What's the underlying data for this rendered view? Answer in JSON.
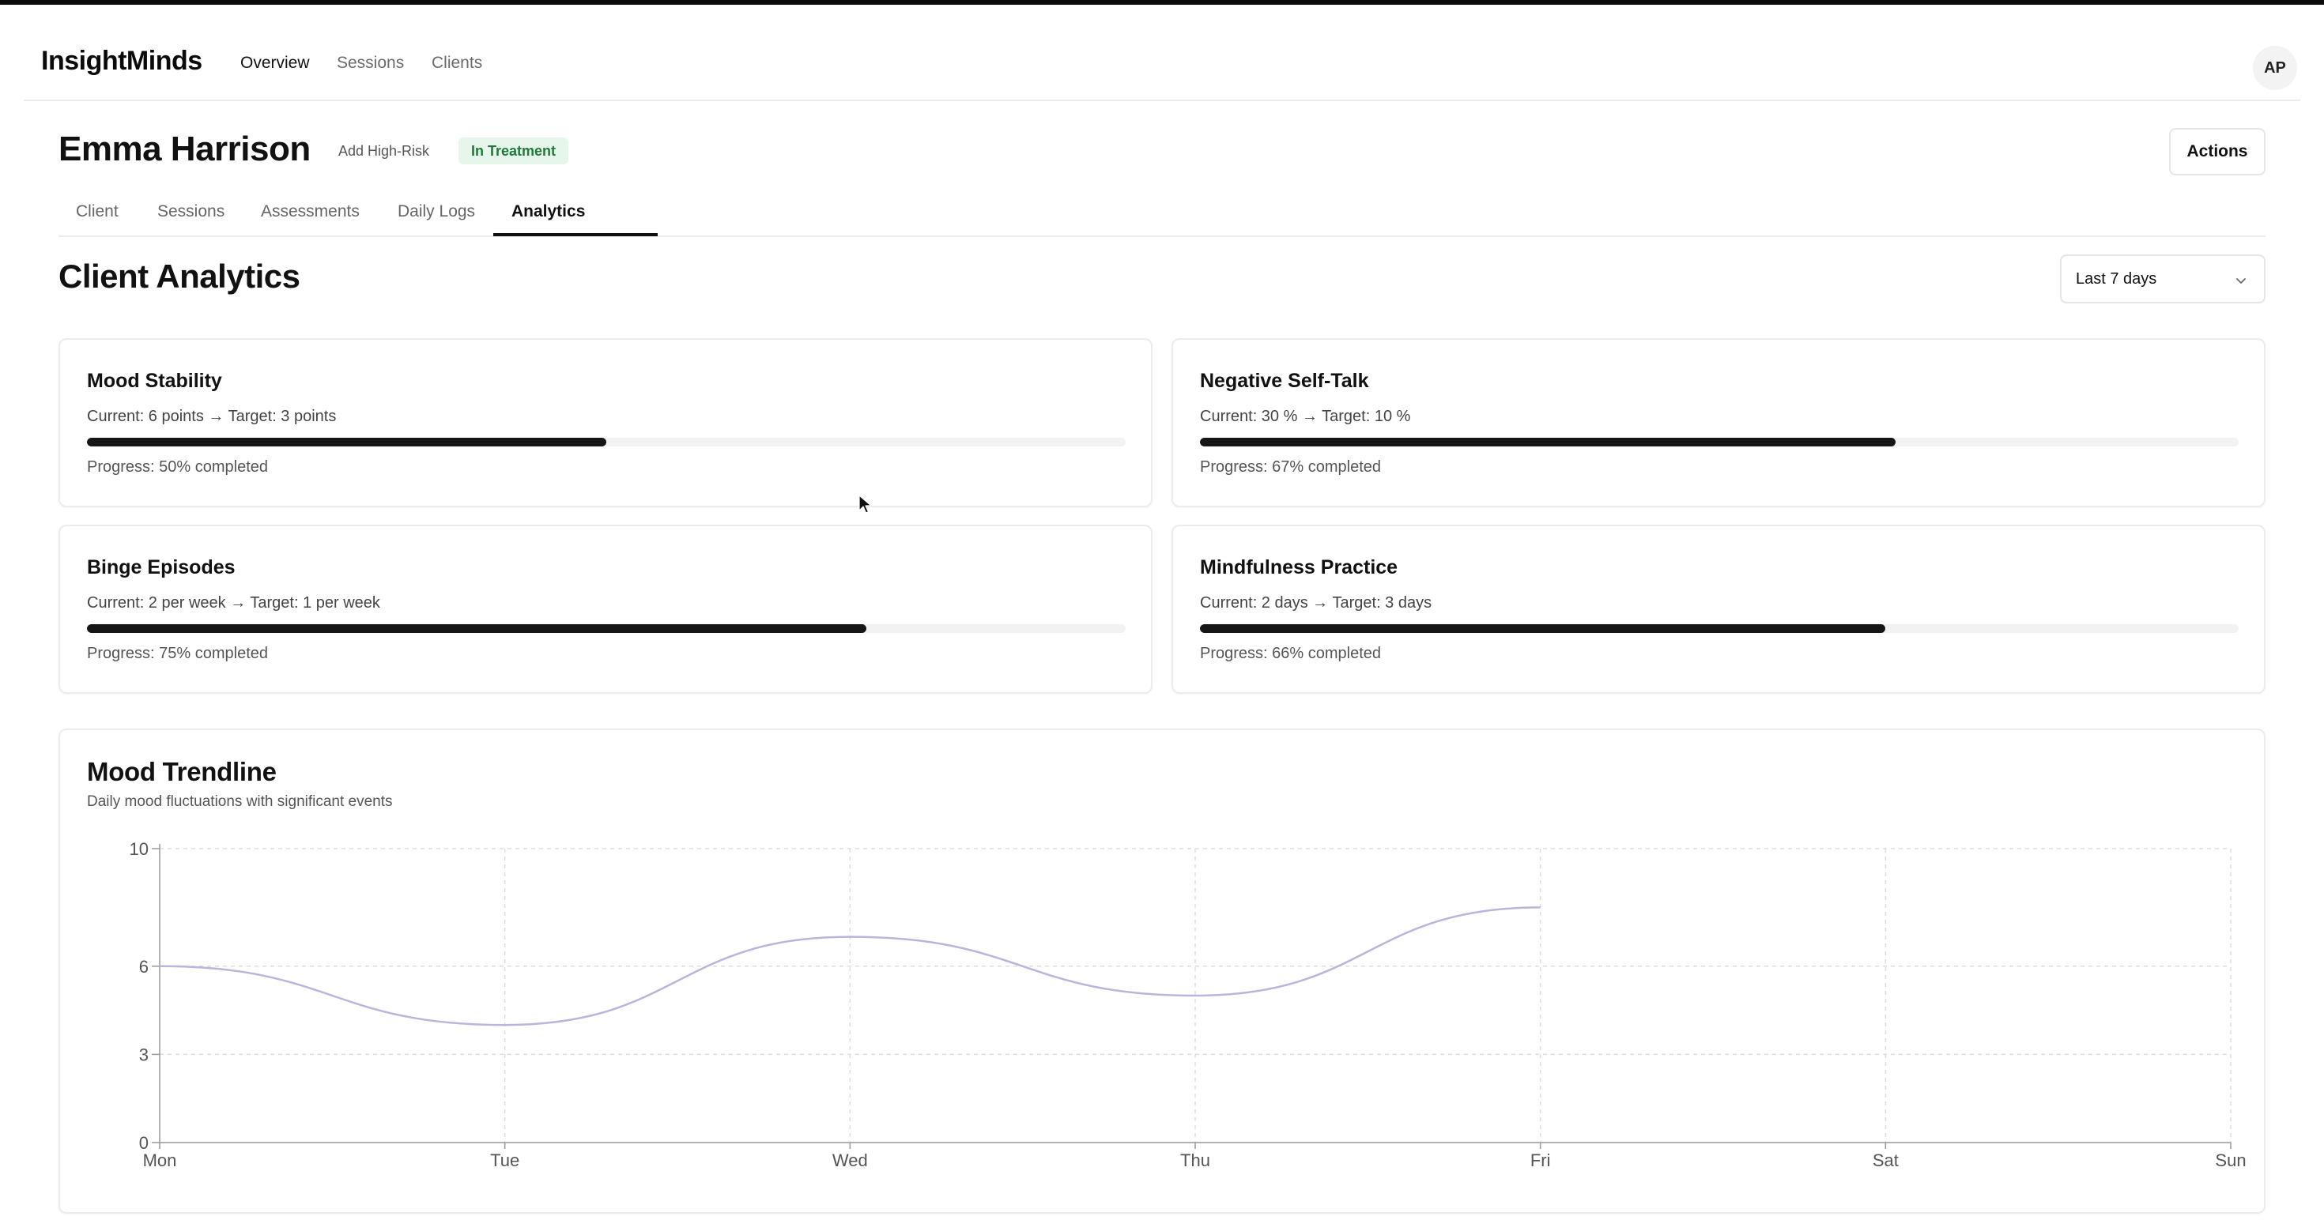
{
  "app": {
    "name": "InsightMinds",
    "nav": [
      "Overview",
      "Sessions",
      "Clients"
    ],
    "active_nav": "Overview",
    "user_initials": "AP"
  },
  "client": {
    "name": "Emma Harrison",
    "risk_action": "Add High-Risk",
    "status": "In Treatment",
    "actions_label": "Actions"
  },
  "tabs": [
    "Client",
    "Sessions",
    "Assessments",
    "Daily Logs",
    "Analytics"
  ],
  "active_tab": "Analytics",
  "analytics": {
    "title": "Client Analytics",
    "range": "Last 7 days"
  },
  "goals": [
    {
      "title": "Mood Stability",
      "current": "Current: 6 points → Target: 3 points",
      "progress_label": "Progress: 50% completed",
      "progress": 0.5
    },
    {
      "title": "Negative Self-Talk",
      "current": "Current: 30 % → Target: 10 %",
      "progress_label": "Progress: 67% completed",
      "progress": 0.67
    },
    {
      "title": "Binge Episodes",
      "current": "Current: 2 per week → Target: 1 per week",
      "progress_label": "Progress: 75% completed",
      "progress": 0.75
    },
    {
      "title": "Mindfulness Practice",
      "current": "Current: 2 days → Target: 3 days",
      "progress_label": "Progress: 66% completed",
      "progress": 0.66
    }
  ],
  "mood_chart": {
    "title": "Mood Trendline",
    "subtitle": "Daily mood fluctuations with significant events"
  },
  "chart_data": {
    "type": "line",
    "x": [
      "Mon",
      "Tue",
      "Wed",
      "Thu",
      "Fri",
      "Sat",
      "Sun"
    ],
    "series": [
      {
        "values": [
          6,
          4,
          7,
          5,
          8,
          null,
          null
        ]
      }
    ],
    "y_ticks": [
      0,
      3,
      6,
      10
    ],
    "ylim": [
      0,
      10
    ],
    "grid": true,
    "line_color": "#b9b5dc"
  }
}
